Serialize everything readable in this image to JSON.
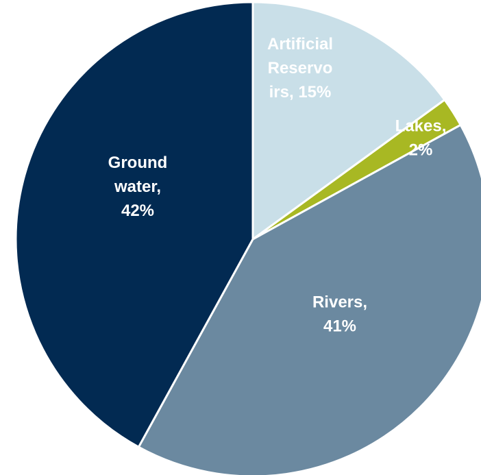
{
  "chart_data": {
    "type": "pie",
    "title": "",
    "slices": [
      {
        "category": "Artificial Reservoirs",
        "value": 15,
        "color": "#c9dfe8",
        "label_lines": [
          "Artificial",
          "Reservo",
          "irs, 15%"
        ]
      },
      {
        "category": "Lakes",
        "value": 2,
        "color": "#a8b823",
        "label_lines": [
          "Lakes,",
          "2%"
        ]
      },
      {
        "category": "Rivers",
        "value": 41,
        "color": "#6b89a0",
        "label_lines": [
          "Rivers,",
          "41%"
        ]
      },
      {
        "category": "Ground water",
        "value": 42,
        "color": "#022a52",
        "label_lines": [
          "Ground",
          "water,",
          "42%"
        ]
      }
    ],
    "start_angle_deg": 0,
    "direction": "clockwise",
    "legend": "none",
    "label_color": "#ffffff"
  }
}
